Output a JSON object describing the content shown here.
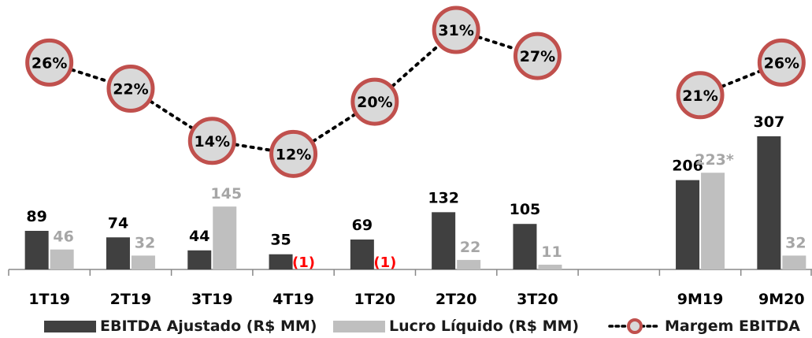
{
  "colors": {
    "ebitda": "#404040",
    "lucro": "#bfbfbf",
    "margin_circle_fill": "#d9d9d9",
    "margin_circle_stroke": "#c0504d",
    "negative": "#ff0000",
    "lucro_label": "#a6a6a6",
    "axis": "#888888"
  },
  "chart_data": {
    "type": "bar",
    "categories": [
      "1T19",
      "2T19",
      "3T19",
      "4T19",
      "1T20",
      "2T20",
      "3T20",
      "",
      "9M19",
      "9M20"
    ],
    "series": [
      {
        "name": "EBITDA Ajustado (R$ MM)",
        "values": [
          89,
          74,
          44,
          35,
          69,
          132,
          105,
          null,
          206,
          307
        ],
        "labels": [
          "89",
          "74",
          "44",
          "35",
          "69",
          "132",
          "105",
          "",
          "206",
          "307"
        ]
      },
      {
        "name": "Lucro Líquido (R$ MM)",
        "values": [
          46,
          32,
          145,
          -1,
          -1,
          22,
          11,
          null,
          223,
          32
        ],
        "labels": [
          "46",
          "32",
          "145",
          "(1)",
          "(1)",
          "22",
          "11",
          "",
          "223*",
          "32"
        ]
      },
      {
        "name": "Margem EBITDA",
        "type": "line",
        "values": [
          26,
          22,
          14,
          12,
          20,
          31,
          27,
          null,
          21,
          26
        ],
        "labels": [
          "26%",
          "22%",
          "14%",
          "12%",
          "20%",
          "31%",
          "27%",
          "",
          "21%",
          "26%"
        ]
      }
    ],
    "legend_position": "bottom",
    "grid": false
  },
  "legend": {
    "ebitda": "EBITDA Ajustado (R$ MM)",
    "lucro": "Lucro Líquido (R$ MM)",
    "margem": "Margem EBITDA"
  }
}
